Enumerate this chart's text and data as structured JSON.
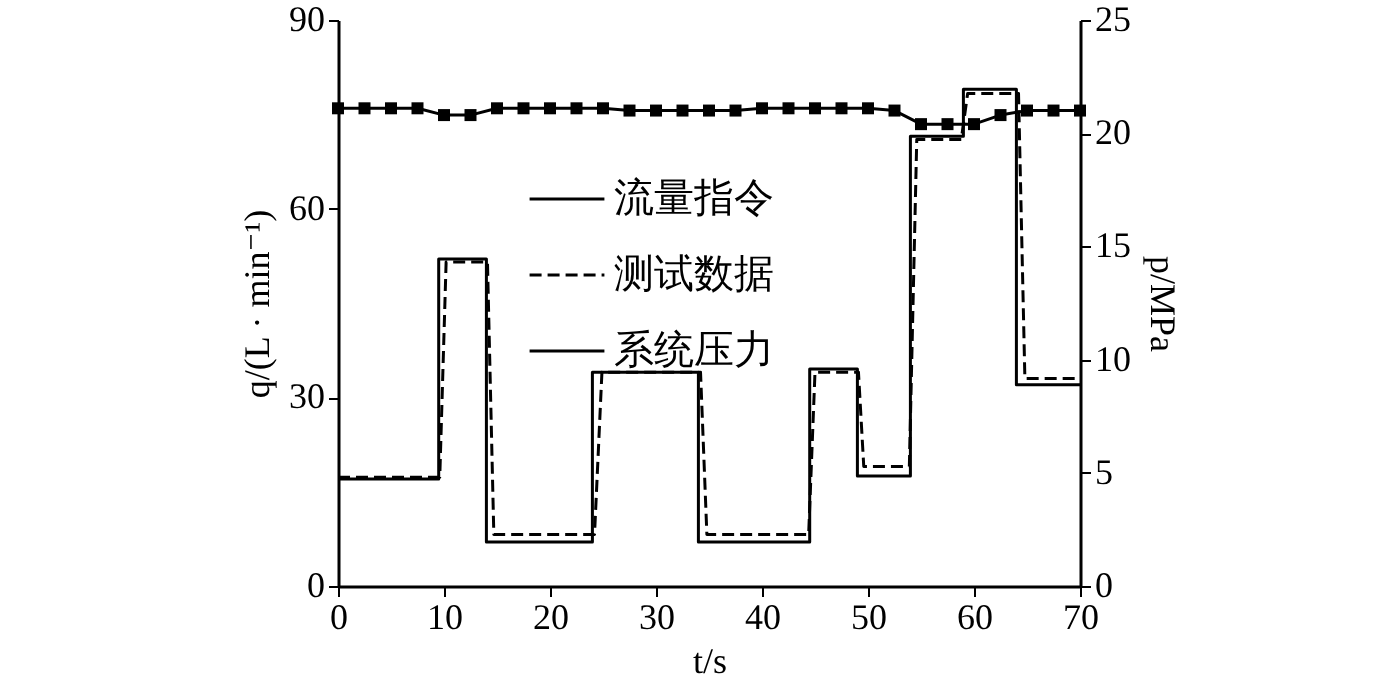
{
  "chart_data": {
    "type": "line",
    "xlabel": "t/s",
    "ylabel": "q/(L · min⁻¹)",
    "y2label": "p/MPa",
    "xlim": [
      0,
      70
    ],
    "xticks": [
      0,
      10,
      20,
      30,
      40,
      50,
      60,
      70
    ],
    "ylim": [
      0,
      90
    ],
    "yticks": [
      0,
      30,
      60,
      90
    ],
    "y2lim": [
      0,
      25
    ],
    "y2ticks": [
      0,
      5,
      10,
      15,
      20,
      25
    ],
    "grid": false,
    "legend": "top",
    "series": [
      {
        "name": "流量指令",
        "type": "step",
        "color": "#000000",
        "line_style": "solid",
        "marker": "none",
        "x": [
          0,
          9.5,
          14,
          24,
          34,
          44.5,
          49,
          54,
          59,
          64,
          70
        ],
        "values": [
          17,
          52,
          7,
          34,
          7,
          34.5,
          17.5,
          71.5,
          79,
          32,
          32
        ]
      },
      {
        "name": "测试数据",
        "type": "line",
        "color": "#000000",
        "line_style": "dashed",
        "marker": "none",
        "x": [
          0,
          9.6,
          10.2,
          14.1,
          14.7,
          24.2,
          24.9,
          34.2,
          34.8,
          44.4,
          45,
          49.1,
          49.6,
          53.9,
          54.6,
          58.8,
          59.4,
          64.2,
          64.8,
          70
        ],
        "values": [
          17.3,
          17.3,
          51.5,
          51.5,
          8.2,
          8.2,
          34,
          34,
          8.2,
          8.2,
          34,
          34,
          19,
          19,
          71,
          71,
          78.3,
          78.3,
          33,
          33
        ]
      },
      {
        "name": "系统压力",
        "type": "line",
        "color": "#000000",
        "line_style": "solid",
        "marker": "square",
        "axis": "y2",
        "x": [
          0,
          2.5,
          5,
          7.5,
          10,
          12.5,
          15,
          17.5,
          20,
          22.5,
          25,
          27.5,
          30,
          32.5,
          35,
          37.5,
          40,
          42.5,
          45,
          47.5,
          50,
          52.5,
          55,
          57.5,
          60,
          62.5,
          65,
          67.5,
          70
        ],
        "values": [
          21.1,
          21.1,
          21.1,
          21.1,
          20.8,
          20.8,
          21.1,
          21.1,
          21.1,
          21.1,
          21.1,
          21,
          21,
          21,
          21,
          21,
          21.1,
          21.1,
          21.1,
          21.1,
          21.1,
          21,
          20.4,
          20.4,
          20.4,
          20.8,
          21,
          21,
          21
        ]
      }
    ]
  }
}
